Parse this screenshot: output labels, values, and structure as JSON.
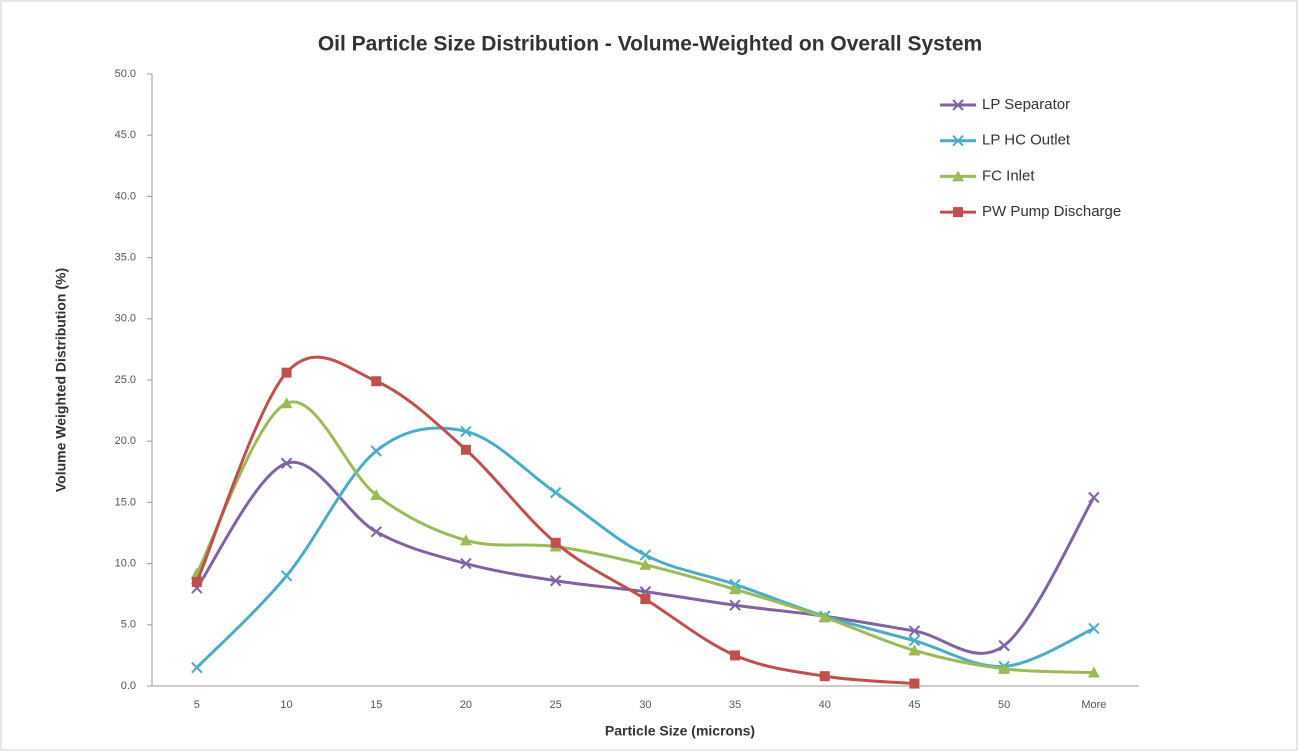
{
  "chart_data": {
    "type": "line",
    "title": "Oil Particle Size Distribution - Volume-Weighted on Overall System",
    "x_label": "Particle Size (microns)",
    "y_label": "Volume Weighted Distribution (%)",
    "categories": [
      "5",
      "10",
      "15",
      "20",
      "25",
      "30",
      "35",
      "40",
      "45",
      "50",
      "More"
    ],
    "ylim": [
      0,
      50
    ],
    "yticks": [
      {
        "value": 0,
        "label": "0.0"
      },
      {
        "value": 5,
        "label": "5.0"
      },
      {
        "value": 10,
        "label": "10.0"
      },
      {
        "value": 15,
        "label": "15.0"
      },
      {
        "value": 20,
        "label": "20.0"
      },
      {
        "value": 25,
        "label": "25.0"
      },
      {
        "value": 30,
        "label": "30.0"
      },
      {
        "value": 35,
        "label": "35.0"
      },
      {
        "value": 40,
        "label": "40.0"
      },
      {
        "value": 45,
        "label": "45.0"
      },
      {
        "value": 50,
        "label": "50.0"
      }
    ],
    "grid": false,
    "smooth": true,
    "legend": "upper right",
    "series": [
      {
        "name": "LP Separator",
        "color": "#8064a2",
        "marker": "x",
        "values": [
          8.0,
          18.2,
          12.6,
          10.0,
          8.6,
          7.7,
          6.6,
          5.7,
          4.5,
          3.3,
          15.4
        ]
      },
      {
        "name": "LP HC Outlet",
        "color": "#4bacc6",
        "marker": "x",
        "values": [
          1.5,
          9.0,
          19.2,
          20.8,
          15.8,
          10.7,
          8.3,
          5.7,
          3.7,
          1.6,
          4.7
        ]
      },
      {
        "name": "FC Inlet",
        "color": "#9bbb59",
        "marker": "triangle",
        "values": [
          9.2,
          23.1,
          15.6,
          11.9,
          11.4,
          9.9,
          7.9,
          5.6,
          2.9,
          1.4,
          1.1
        ]
      },
      {
        "name": "PW Pump Discharge",
        "color": "#c0504d",
        "marker": "square",
        "values": [
          8.5,
          25.6,
          24.9,
          19.3,
          11.7,
          7.1,
          2.5,
          0.8,
          0.2,
          null,
          null
        ]
      }
    ]
  }
}
